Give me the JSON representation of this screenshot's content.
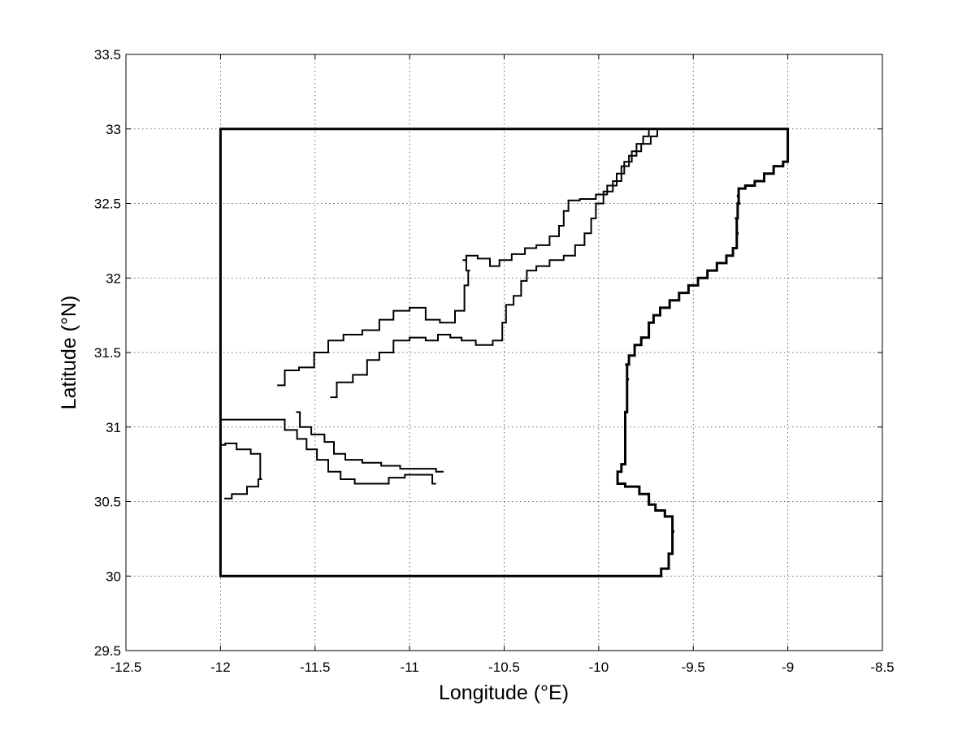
{
  "chart_data": {
    "type": "map",
    "xlabel": "Longitude (°E)",
    "ylabel": "Latitude (°N)",
    "xlim": [
      -12.5,
      -8.5
    ],
    "ylim": [
      29.5,
      33.5
    ],
    "grid": true,
    "x_ticks": [
      -12.5,
      -12,
      -11.5,
      -11,
      -10.5,
      -10,
      -9.5,
      -9,
      -8.5
    ],
    "y_ticks": [
      29.5,
      30,
      30.5,
      31,
      31.5,
      32,
      32.5,
      33,
      33.5
    ],
    "x_tick_labels": [
      "-12.5",
      "-12",
      "-11.5",
      "-11",
      "-10.5",
      "-10",
      "-9.5",
      "-9",
      "-8.5"
    ],
    "y_tick_labels": [
      "29.5",
      "30",
      "30.5",
      "31",
      "31.5",
      "32",
      "32.5",
      "33",
      "33.5"
    ],
    "domain_boundary": [
      [
        -12,
        30
      ],
      [
        -12,
        33
      ],
      [
        -9,
        33
      ],
      [
        -9,
        32.78
      ],
      [
        -9.05,
        32.75
      ],
      [
        -9.1,
        32.7
      ],
      [
        -9.15,
        32.65
      ],
      [
        -9.2,
        32.62
      ],
      [
        -9.25,
        32.6
      ],
      [
        -9.27,
        32.55
      ],
      [
        -9.25,
        32.5
      ],
      [
        -9.28,
        32.4
      ],
      [
        -9.26,
        32.3
      ],
      [
        -9.28,
        32.2
      ],
      [
        -9.3,
        32.15
      ],
      [
        -9.35,
        32.1
      ],
      [
        -9.4,
        32.05
      ],
      [
        -9.45,
        32.0
      ],
      [
        -9.5,
        31.95
      ],
      [
        -9.55,
        31.9
      ],
      [
        -9.6,
        31.85
      ],
      [
        -9.65,
        31.8
      ],
      [
        -9.7,
        31.75
      ],
      [
        -9.72,
        31.7
      ],
      [
        -9.75,
        31.6
      ],
      [
        -9.8,
        31.55
      ],
      [
        -9.82,
        31.48
      ],
      [
        -9.86,
        31.42
      ],
      [
        -9.84,
        31.32
      ],
      [
        -9.86,
        31.1
      ],
      [
        -9.86,
        30.9
      ],
      [
        -9.86,
        30.75
      ],
      [
        -9.9,
        30.7
      ],
      [
        -9.9,
        30.62
      ],
      [
        -9.82,
        30.6
      ],
      [
        -9.75,
        30.55
      ],
      [
        -9.72,
        30.48
      ],
      [
        -9.68,
        30.44
      ],
      [
        -9.62,
        30.4
      ],
      [
        -9.6,
        30.3
      ],
      [
        -9.62,
        30.15
      ],
      [
        -9.64,
        30.05
      ],
      [
        -9.7,
        30.0
      ],
      [
        -12,
        30
      ]
    ],
    "series": [
      {
        "values": [
          [
            -11.98,
            30.52
          ],
          [
            -11.9,
            30.55
          ],
          [
            -11.82,
            30.6
          ],
          [
            -11.78,
            30.65
          ],
          [
            -11.8,
            30.82
          ],
          [
            -11.88,
            30.85
          ],
          [
            -11.95,
            30.89
          ],
          [
            -12,
            30.88
          ]
        ]
      },
      {
        "values": [
          [
            -12,
            31.05
          ],
          [
            -11.7,
            31.05
          ],
          [
            -11.62,
            30.98
          ],
          [
            -11.57,
            30.92
          ],
          [
            -11.52,
            30.85
          ],
          [
            -11.46,
            30.78
          ],
          [
            -11.4,
            30.7
          ],
          [
            -11.33,
            30.65
          ],
          [
            -11.25,
            30.62
          ],
          [
            -11.15,
            30.62
          ],
          [
            -11.07,
            30.66
          ],
          [
            -10.98,
            30.68
          ],
          [
            -10.9,
            30.68
          ],
          [
            -10.86,
            30.62
          ]
        ]
      },
      {
        "values": [
          [
            -11.7,
            31.28
          ],
          [
            -11.62,
            31.38
          ],
          [
            -11.55,
            31.4
          ],
          [
            -11.46,
            31.5
          ],
          [
            -11.4,
            31.58
          ],
          [
            -11.3,
            31.62
          ],
          [
            -11.2,
            31.65
          ],
          [
            -11.12,
            31.72
          ],
          [
            -11.05,
            31.78
          ],
          [
            -10.95,
            31.8
          ],
          [
            -10.88,
            31.72
          ],
          [
            -10.8,
            31.7
          ],
          [
            -10.72,
            31.78
          ],
          [
            -10.7,
            31.95
          ],
          [
            -10.68,
            32.05
          ],
          [
            -10.72,
            32.12
          ],
          [
            -10.68,
            32.15
          ],
          [
            -10.6,
            32.13
          ],
          [
            -10.55,
            32.08
          ],
          [
            -10.5,
            32.12
          ],
          [
            -10.42,
            32.16
          ],
          [
            -10.36,
            32.2
          ],
          [
            -10.3,
            32.22
          ],
          [
            -10.22,
            32.28
          ],
          [
            -10.2,
            32.35
          ],
          [
            -10.17,
            32.45
          ],
          [
            -10.15,
            32.52
          ],
          [
            -10.05,
            32.53
          ],
          [
            -9.98,
            32.56
          ],
          [
            -9.93,
            32.62
          ],
          [
            -9.88,
            32.7
          ],
          [
            -9.85,
            32.78
          ],
          [
            -9.8,
            32.85
          ],
          [
            -9.75,
            32.9
          ],
          [
            -9.7,
            32.95
          ],
          [
            -9.68,
            33.0
          ]
        ]
      },
      {
        "values": [
          [
            -11.6,
            31.1
          ],
          [
            -11.56,
            31.0
          ],
          [
            -11.48,
            30.95
          ],
          [
            -11.42,
            30.9
          ],
          [
            -11.38,
            30.82
          ],
          [
            -11.3,
            30.78
          ],
          [
            -11.2,
            30.76
          ],
          [
            -11.1,
            30.74
          ],
          [
            -11.0,
            30.72
          ],
          [
            -10.9,
            30.72
          ],
          [
            -10.82,
            30.7
          ]
        ]
      },
      {
        "values": [
          [
            -11.42,
            31.2
          ],
          [
            -11.35,
            31.3
          ],
          [
            -11.25,
            31.35
          ],
          [
            -11.2,
            31.45
          ],
          [
            -11.12,
            31.5
          ],
          [
            -11.05,
            31.58
          ],
          [
            -10.95,
            31.6
          ],
          [
            -10.88,
            31.58
          ],
          [
            -10.82,
            31.62
          ],
          [
            -10.75,
            31.6
          ],
          [
            -10.7,
            31.58
          ],
          [
            -10.6,
            31.55
          ],
          [
            -10.52,
            31.58
          ],
          [
            -10.5,
            31.7
          ],
          [
            -10.48,
            31.82
          ],
          [
            -10.42,
            31.88
          ],
          [
            -10.4,
            31.98
          ],
          [
            -10.36,
            32.05
          ],
          [
            -10.3,
            32.08
          ],
          [
            -10.22,
            32.12
          ],
          [
            -10.15,
            32.15
          ],
          [
            -10.1,
            32.22
          ],
          [
            -10.05,
            32.3
          ],
          [
            -10.03,
            32.4
          ],
          [
            -10.0,
            32.5
          ],
          [
            -9.95,
            32.58
          ],
          [
            -9.9,
            32.65
          ],
          [
            -9.86,
            32.75
          ],
          [
            -9.82,
            32.82
          ],
          [
            -9.78,
            32.9
          ],
          [
            -9.75,
            32.95
          ],
          [
            -9.72,
            33.0
          ]
        ]
      }
    ]
  }
}
